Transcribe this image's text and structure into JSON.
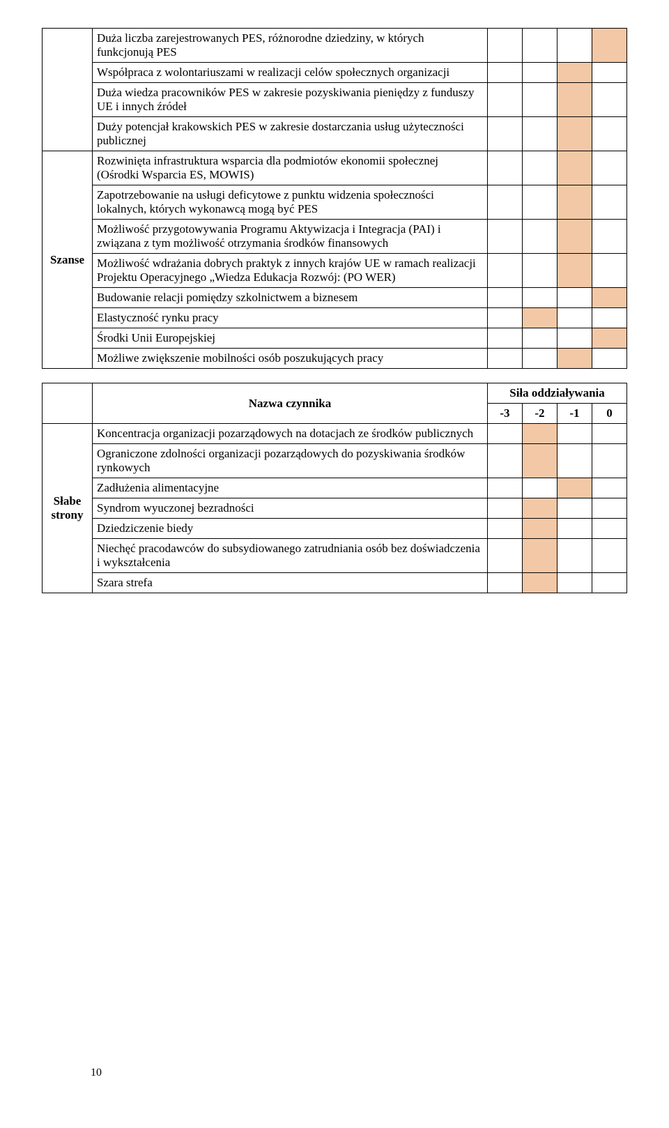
{
  "highlight_color": "#f3c8a6",
  "border_color": "#000000",
  "table1": {
    "category": "Szanse",
    "rows": [
      {
        "text": "Duża liczba zarejestrowanych PES, różnorodne dziedziny, w których funkcjonują PES",
        "marks": [
          false,
          false,
          false,
          true
        ]
      },
      {
        "text": "Współpraca z wolontariuszami w realizacji celów społecznych organizacji",
        "marks": [
          false,
          false,
          true,
          false
        ]
      },
      {
        "text": "Duża wiedza pracowników PES w zakresie pozyskiwania pieniędzy z funduszy UE i innych źródeł",
        "marks": [
          false,
          false,
          true,
          false
        ]
      },
      {
        "text": "Duży potencjał krakowskich PES w zakresie dostarczania usług użyteczności publicznej",
        "marks": [
          false,
          false,
          true,
          false
        ]
      },
      {
        "text": "Rozwinięta infrastruktura wsparcia dla podmiotów ekonomii społecznej (Ośrodki Wsparcia ES, MOWIS)",
        "marks": [
          false,
          false,
          true,
          false
        ]
      },
      {
        "text": "Zapotrzebowanie na usługi deficytowe z punktu widzenia społeczności lokalnych, których wykonawcą mogą być PES",
        "marks": [
          false,
          false,
          true,
          false
        ]
      },
      {
        "text": "Możliwość przygotowywania Programu Aktywizacja i Integracja (PAI) i związana z tym możliwość otrzymania środków finansowych",
        "marks": [
          false,
          false,
          true,
          false
        ]
      },
      {
        "text": "Możliwość wdrażania dobrych praktyk z innych krajów UE w ramach realizacji Projektu Operacyjnego „Wiedza Edukacja Rozwój: (PO WER)",
        "marks": [
          false,
          false,
          true,
          false
        ]
      },
      {
        "text": "Budowanie relacji pomiędzy szkolnictwem a biznesem",
        "marks": [
          false,
          false,
          false,
          true
        ]
      },
      {
        "text": "Elastyczność rynku pracy",
        "marks": [
          false,
          true,
          false,
          false
        ]
      },
      {
        "text": "Środki Unii Europejskiej",
        "marks": [
          false,
          false,
          false,
          true
        ]
      },
      {
        "text": "Możliwe zwiększenie mobilności osób poszukujących pracy",
        "marks": [
          false,
          false,
          true,
          false
        ]
      }
    ]
  },
  "table2": {
    "header_left": "Nazwa czynnika",
    "header_right": "Siła oddziaływania",
    "scale": [
      "-3",
      "-2",
      "-1",
      "0"
    ],
    "category": "Słabe strony",
    "rows": [
      {
        "text": "Koncentracja organizacji pozarządowych na dotacjach ze środków publicznych",
        "marks": [
          false,
          true,
          false,
          false
        ]
      },
      {
        "text": "Ograniczone zdolności organizacji pozarządowych do pozyskiwania środków rynkowych",
        "marks": [
          false,
          true,
          false,
          false
        ]
      },
      {
        "text": "Zadłużenia alimentacyjne",
        "marks": [
          false,
          false,
          true,
          false
        ]
      },
      {
        "text": "Syndrom wyuczonej bezradności",
        "marks": [
          false,
          true,
          false,
          false
        ]
      },
      {
        "text": "Dziedziczenie biedy",
        "marks": [
          false,
          true,
          false,
          false
        ]
      },
      {
        "text": "Niechęć pracodawców do subsydiowanego zatrudniania osób bez doświadczenia i wykształcenia",
        "marks": [
          false,
          true,
          false,
          false
        ]
      },
      {
        "text": "Szara strefa",
        "marks": [
          false,
          true,
          false,
          false
        ]
      }
    ]
  },
  "page_number": "10"
}
